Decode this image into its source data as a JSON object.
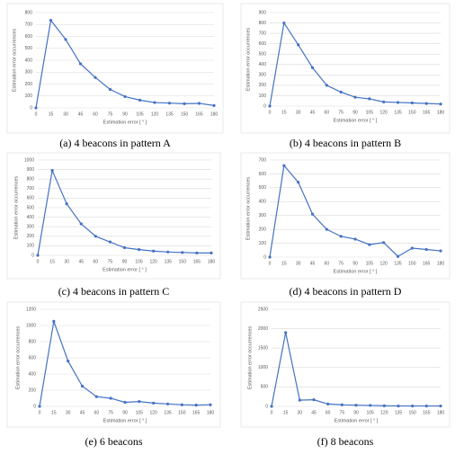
{
  "chart_data": [
    {
      "type": "line",
      "caption": "(a) 4 beacons in pattern A",
      "x_label": "Estimation error [ ° ]",
      "y_label": "Estimation error occurrences",
      "categories": [
        0,
        15,
        30,
        45,
        60,
        75,
        90,
        105,
        120,
        135,
        150,
        165,
        180
      ],
      "series": [
        {
          "color": "#4472c4",
          "values": [
            0,
            735,
            575,
            370,
            255,
            155,
            95,
            65,
            45,
            40,
            35,
            38,
            20
          ]
        }
      ],
      "ylim": [
        0,
        800
      ],
      "yticks": [
        0,
        100,
        200,
        300,
        400,
        500,
        600,
        700,
        800
      ],
      "grid": true
    },
    {
      "type": "line",
      "caption": "(b) 4 beacons in pattern B",
      "x_label": "Estimation error [ ° ]",
      "y_label": "Estimation error occurrences",
      "categories": [
        0,
        15,
        30,
        45,
        60,
        75,
        90,
        105,
        120,
        135,
        150,
        165,
        180
      ],
      "series": [
        {
          "color": "#4472c4",
          "values": [
            0,
            800,
            590,
            370,
            200,
            135,
            85,
            70,
            40,
            35,
            30,
            25,
            20
          ]
        }
      ],
      "ylim": [
        0,
        900
      ],
      "yticks": [
        0,
        100,
        200,
        300,
        400,
        500,
        600,
        700,
        800,
        900
      ],
      "grid": true
    },
    {
      "type": "line",
      "caption": "(c) 4 beacons in pattern C",
      "x_label": "Estimation error [ ° ]",
      "y_label": "Estimation error occurrences",
      "categories": [
        0,
        15,
        30,
        45,
        60,
        75,
        90,
        105,
        120,
        135,
        150,
        165,
        180
      ],
      "series": [
        {
          "color": "#4472c4",
          "values": [
            0,
            890,
            540,
            330,
            200,
            140,
            80,
            60,
            45,
            35,
            30,
            25,
            25
          ]
        }
      ],
      "ylim": [
        0,
        1000
      ],
      "yticks": [
        0,
        100,
        200,
        300,
        400,
        500,
        600,
        700,
        800,
        900,
        1000
      ],
      "grid": true
    },
    {
      "type": "line",
      "caption": "(d) 4 beacons in pattern D",
      "x_label": "Estimation error [ ° ]",
      "y_label": "Estimation error occurrences",
      "categories": [
        0,
        15,
        30,
        45,
        60,
        75,
        90,
        105,
        120,
        135,
        150,
        165,
        180
      ],
      "series": [
        {
          "color": "#4472c4",
          "values": [
            0,
            660,
            540,
            310,
            200,
            150,
            130,
            90,
            105,
            5,
            65,
            55,
            45
          ]
        }
      ],
      "ylim": [
        0,
        700
      ],
      "yticks": [
        0,
        100,
        200,
        300,
        400,
        500,
        600,
        700
      ],
      "grid": true
    },
    {
      "type": "line",
      "caption": "(e) 6 beacons",
      "x_label": "Estimation error [ ° ]",
      "y_label": "Estimation error occurrences",
      "categories": [
        0,
        15,
        30,
        45,
        60,
        75,
        90,
        105,
        120,
        135,
        150,
        165,
        180
      ],
      "series": [
        {
          "color": "#4472c4",
          "values": [
            0,
            1050,
            560,
            250,
            120,
            100,
            50,
            60,
            40,
            30,
            20,
            15,
            20
          ]
        }
      ],
      "ylim": [
        0,
        1200
      ],
      "yticks": [
        0,
        200,
        400,
        600,
        800,
        1000,
        1200
      ],
      "grid": true
    },
    {
      "type": "line",
      "caption": "(f) 8 beacons",
      "x_label": "Estimation error [ ° ]",
      "y_label": "Estimation error occurrences",
      "categories": [
        0,
        15,
        30,
        45,
        60,
        75,
        90,
        105,
        120,
        135,
        150,
        165,
        180
      ],
      "series": [
        {
          "color": "#4472c4",
          "values": [
            0,
            1900,
            160,
            170,
            60,
            40,
            30,
            25,
            15,
            10,
            10,
            10,
            10
          ]
        }
      ],
      "ylim": [
        0,
        2500
      ],
      "yticks": [
        0,
        500,
        1000,
        1500,
        2000,
        2500
      ],
      "grid": true
    }
  ]
}
